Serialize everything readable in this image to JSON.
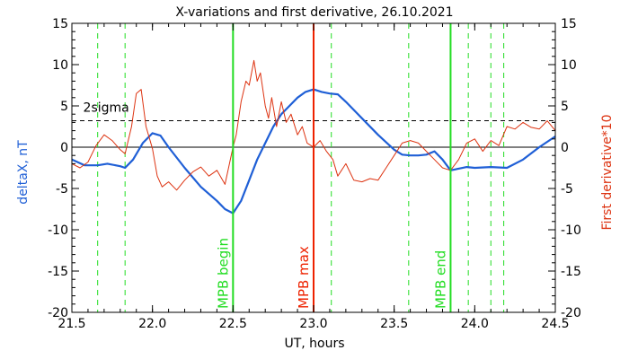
{
  "chart_data": {
    "type": "line",
    "title": "X-variations and first derivative, 26.10.2021",
    "xlabel": "UT, hours",
    "ylabel": "deltaX, nT",
    "y2label": "First derivative*10",
    "xlim": [
      21.5,
      24.5
    ],
    "ylim": [
      -20,
      15
    ],
    "y2lim": [
      -20,
      15
    ],
    "x_ticks": [
      21.5,
      22.0,
      22.5,
      23.0,
      23.5,
      24.0,
      24.5
    ],
    "x_tick_labels": [
      "21.5",
      "22.0",
      "22.5",
      "23.0",
      "23.5",
      "24.0",
      "24.5"
    ],
    "y_ticks": [
      -20,
      -15,
      -10,
      -5,
      0,
      5,
      10,
      15
    ],
    "y_tick_labels": [
      "-20",
      "-15",
      "-10",
      "-5",
      "0",
      "5",
      "10",
      "15"
    ],
    "y2_ticks": [
      -20,
      -15,
      -10,
      -5,
      0,
      5,
      10,
      15
    ],
    "y2_tick_labels": [
      "-20",
      "-15",
      "-10",
      "-5",
      "0",
      "5",
      "10",
      "15"
    ],
    "zero_line": 0,
    "sigma_line": {
      "y": 3.2,
      "label": "2sigma"
    },
    "markers": [
      {
        "x": 22.5,
        "label": "MPB begin",
        "color": "#22dd22",
        "style": "solid"
      },
      {
        "x": 23.0,
        "label": "MPB max",
        "color": "#ee2200",
        "style": "solid"
      },
      {
        "x": 23.85,
        "label": "MPB end",
        "color": "#22dd22",
        "style": "solid"
      }
    ],
    "dashed_markers": [
      21.66,
      21.83,
      23.11,
      23.59,
      23.96,
      24.1,
      24.18
    ],
    "series": [
      {
        "axis": "left",
        "color": "#1f5fd6",
        "x": [
          21.5,
          21.58,
          21.66,
          21.72,
          21.8,
          21.83,
          21.88,
          21.94,
          22.0,
          22.05,
          22.1,
          22.2,
          22.3,
          22.4,
          22.45,
          22.5,
          22.55,
          22.6,
          22.65,
          22.7,
          22.75,
          22.8,
          22.85,
          22.9,
          22.95,
          23.0,
          23.05,
          23.1,
          23.15,
          23.2,
          23.3,
          23.4,
          23.5,
          23.55,
          23.6,
          23.65,
          23.7,
          23.75,
          23.8,
          23.85,
          23.9,
          23.95,
          24.0,
          24.1,
          24.2,
          24.3,
          24.4,
          24.5
        ],
        "values": [
          -1.5,
          -2.2,
          -2.2,
          -2.0,
          -2.3,
          -2.5,
          -1.5,
          0.5,
          1.7,
          1.4,
          0.0,
          -2.5,
          -4.8,
          -6.5,
          -7.5,
          -8.0,
          -6.5,
          -4.0,
          -1.5,
          0.5,
          2.5,
          4.0,
          5.0,
          6.0,
          6.7,
          7.0,
          6.7,
          6.5,
          6.4,
          5.5,
          3.5,
          1.5,
          -0.3,
          -0.9,
          -1.0,
          -1.0,
          -0.9,
          -0.5,
          -1.5,
          -2.8,
          -2.6,
          -2.4,
          -2.5,
          -2.4,
          -2.5,
          -1.5,
          0.0,
          1.3
        ]
      },
      {
        "axis": "right",
        "color": "#dd3311",
        "x": [
          21.5,
          21.55,
          21.6,
          21.65,
          21.7,
          21.75,
          21.8,
          21.83,
          21.87,
          21.9,
          21.93,
          21.96,
          22.0,
          22.03,
          22.06,
          22.1,
          22.15,
          22.2,
          22.25,
          22.3,
          22.35,
          22.4,
          22.45,
          22.5,
          22.52,
          22.55,
          22.58,
          22.6,
          22.63,
          22.65,
          22.67,
          22.7,
          22.72,
          22.74,
          22.77,
          22.8,
          22.83,
          22.86,
          22.9,
          22.93,
          22.96,
          23.0,
          23.04,
          23.08,
          23.12,
          23.15,
          23.2,
          23.25,
          23.3,
          23.35,
          23.4,
          23.45,
          23.5,
          23.55,
          23.6,
          23.65,
          23.7,
          23.75,
          23.8,
          23.85,
          23.9,
          23.95,
          24.0,
          24.05,
          24.1,
          24.15,
          24.2,
          24.25,
          24.3,
          24.35,
          24.4,
          24.45,
          24.5
        ],
        "values": [
          -2.0,
          -2.5,
          -1.8,
          0.2,
          1.5,
          0.8,
          -0.3,
          -0.8,
          2.5,
          6.5,
          7.0,
          2.5,
          -0.2,
          -3.5,
          -4.8,
          -4.2,
          -5.2,
          -4.0,
          -3.0,
          -2.4,
          -3.5,
          -2.8,
          -4.5,
          0.0,
          1.5,
          5.5,
          8.0,
          7.5,
          10.5,
          8.0,
          9.0,
          5.0,
          3.5,
          6.0,
          2.5,
          5.5,
          3.0,
          4.0,
          1.5,
          2.5,
          0.5,
          0.0,
          0.8,
          -0.5,
          -1.5,
          -3.5,
          -2.0,
          -4.0,
          -4.2,
          -3.8,
          -4.0,
          -2.5,
          -1.0,
          0.5,
          0.8,
          0.5,
          -0.5,
          -1.5,
          -2.5,
          -2.8,
          -1.5,
          0.5,
          1.0,
          -0.5,
          0.8,
          0.2,
          2.5,
          2.2,
          3.0,
          2.4,
          2.2,
          3.2,
          2.0
        ]
      }
    ]
  }
}
